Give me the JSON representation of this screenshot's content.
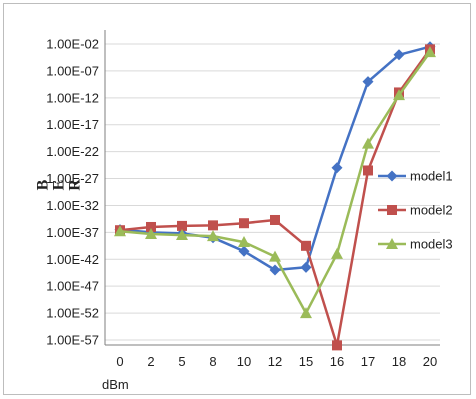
{
  "chart_data": {
    "type": "line",
    "title": "",
    "xlabel": "dBm",
    "ylabel": "BER",
    "y_scale": "log10",
    "ylim_exponent": [
      -57,
      -2
    ],
    "categories": [
      "0",
      "2",
      "5",
      "8",
      "10",
      "12",
      "15",
      "16",
      "17",
      "18",
      "20"
    ],
    "y_tick_labels": [
      "1.00E-02",
      "1.00E-07",
      "1.00E-12",
      "1.00E-17",
      "1.00E-22",
      "1.00E-27",
      "1.00E-32",
      "1.00E-37",
      "1.00E-42",
      "1.00E-47",
      "1.00E-52",
      "1.00E-57"
    ],
    "grid": "horizontal major",
    "legend_position": "right",
    "series": [
      {
        "name": "model1",
        "color": "#4472c4",
        "marker": "diamond",
        "exponents": [
          -36.5,
          -37,
          -37.2,
          -38,
          -40.5,
          -44,
          -43.5,
          -25,
          -9,
          -4,
          -2.5
        ]
      },
      {
        "name": "model2",
        "color": "#c0504d",
        "marker": "square",
        "exponents": [
          -36.6,
          -36,
          -35.8,
          -35.7,
          -35.3,
          -34.7,
          -39.5,
          -58,
          -25.5,
          -11,
          -3
        ]
      },
      {
        "name": "model3",
        "color": "#9bbb59",
        "marker": "triangle",
        "exponents": [
          -36.8,
          -37.3,
          -37.5,
          -37.7,
          -38.8,
          -41.5,
          -52,
          -41,
          -20.5,
          -11.5,
          -3.5
        ]
      }
    ]
  }
}
